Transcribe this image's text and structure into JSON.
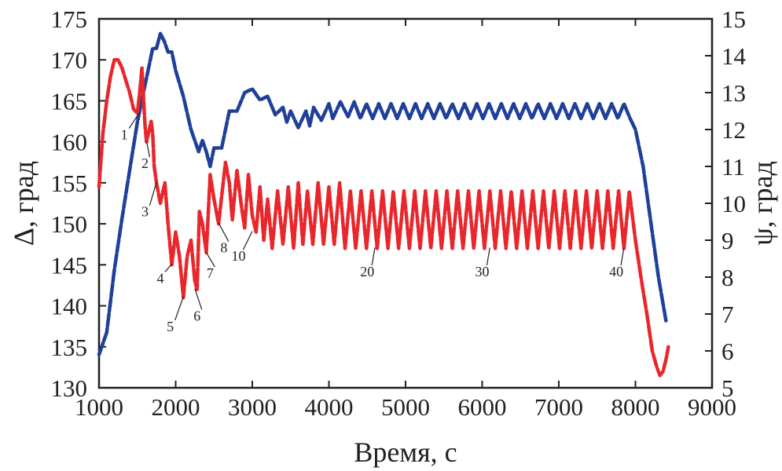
{
  "chart_data": {
    "type": "line",
    "xlabel": "Время, с",
    "ylabel_left": "Δ, град",
    "ylabel_right": "ψ, град",
    "xlim": [
      1000,
      9000
    ],
    "ylim_left": [
      130,
      175
    ],
    "ylim_right": [
      5,
      15
    ],
    "x_ticks": [
      "1000",
      "2000",
      "3000",
      "4000",
      "5000",
      "6000",
      "7000",
      "8000",
      "9000"
    ],
    "y_left_ticks": [
      "130",
      "135",
      "140",
      "145",
      "150",
      "155",
      "160",
      "165",
      "170",
      "175"
    ],
    "y_right_ticks": [
      "5",
      "6",
      "7",
      "8",
      "9",
      "10",
      "11",
      "12",
      "13",
      "14",
      "15"
    ],
    "grid": false,
    "series": [
      {
        "name": "ψ (blue)",
        "axis": "right",
        "color": "#1f3f9a",
        "points": [
          [
            1000,
            5.9
          ],
          [
            1100,
            6.5
          ],
          [
            1200,
            8.2
          ],
          [
            1300,
            9.6
          ],
          [
            1400,
            10.9
          ],
          [
            1500,
            12.2
          ],
          [
            1600,
            13.2
          ],
          [
            1700,
            14.2
          ],
          [
            1750,
            14.2
          ],
          [
            1800,
            14.6
          ],
          [
            1850,
            14.4
          ],
          [
            1900,
            14.1
          ],
          [
            1950,
            14.1
          ],
          [
            2000,
            13.6
          ],
          [
            2100,
            12.9
          ],
          [
            2200,
            12.0
          ],
          [
            2300,
            11.4
          ],
          [
            2350,
            11.7
          ],
          [
            2400,
            11.4
          ],
          [
            2450,
            11.0
          ],
          [
            2500,
            11.5
          ],
          [
            2600,
            11.5
          ],
          [
            2700,
            12.5
          ],
          [
            2800,
            12.5
          ],
          [
            2900,
            13.0
          ],
          [
            3000,
            13.1
          ],
          [
            3100,
            12.8
          ],
          [
            3200,
            12.9
          ],
          [
            3300,
            12.4
          ],
          [
            3400,
            12.6
          ],
          [
            3450,
            12.2
          ],
          [
            3500,
            12.5
          ],
          [
            3600,
            12.05
          ],
          [
            3700,
            12.5
          ],
          [
            3750,
            12.1
          ],
          [
            3800,
            12.6
          ],
          [
            3900,
            12.25
          ],
          [
            4000,
            12.7
          ],
          [
            4050,
            12.3
          ],
          [
            4150,
            12.75
          ],
          [
            4250,
            12.35
          ],
          [
            4330,
            12.75
          ],
          [
            4410,
            12.3
          ],
          [
            4490,
            12.7
          ],
          [
            4570,
            12.3
          ],
          [
            4650,
            12.7
          ],
          [
            4730,
            12.3
          ],
          [
            4810,
            12.7
          ],
          [
            4890,
            12.3
          ],
          [
            4970,
            12.7
          ],
          [
            5050,
            12.3
          ],
          [
            5130,
            12.7
          ],
          [
            5210,
            12.3
          ],
          [
            5290,
            12.7
          ],
          [
            5370,
            12.3
          ],
          [
            5450,
            12.7
          ],
          [
            5530,
            12.3
          ],
          [
            5610,
            12.7
          ],
          [
            5690,
            12.3
          ],
          [
            5770,
            12.7
          ],
          [
            5850,
            12.3
          ],
          [
            5930,
            12.7
          ],
          [
            6010,
            12.3
          ],
          [
            6090,
            12.7
          ],
          [
            6170,
            12.3
          ],
          [
            6250,
            12.7
          ],
          [
            6330,
            12.3
          ],
          [
            6410,
            12.7
          ],
          [
            6490,
            12.3
          ],
          [
            6570,
            12.7
          ],
          [
            6650,
            12.3
          ],
          [
            6730,
            12.7
          ],
          [
            6810,
            12.3
          ],
          [
            6890,
            12.7
          ],
          [
            6970,
            12.3
          ],
          [
            7050,
            12.7
          ],
          [
            7130,
            12.3
          ],
          [
            7210,
            12.7
          ],
          [
            7290,
            12.3
          ],
          [
            7370,
            12.7
          ],
          [
            7450,
            12.3
          ],
          [
            7530,
            12.7
          ],
          [
            7610,
            12.3
          ],
          [
            7690,
            12.7
          ],
          [
            7770,
            12.3
          ],
          [
            7850,
            12.7
          ],
          [
            7930,
            12.3
          ],
          [
            8000,
            12.0
          ],
          [
            8100,
            11.0
          ],
          [
            8200,
            9.5
          ],
          [
            8300,
            8.0
          ],
          [
            8400,
            6.8
          ]
        ]
      },
      {
        "name": "Δ (red)",
        "axis": "left",
        "color": "#e8262b",
        "points": [
          [
            1000,
            154.5
          ],
          [
            1050,
            161
          ],
          [
            1100,
            165
          ],
          [
            1150,
            168
          ],
          [
            1200,
            170
          ],
          [
            1250,
            170
          ],
          [
            1300,
            169
          ],
          [
            1350,
            167.5
          ],
          [
            1400,
            166
          ],
          [
            1450,
            164
          ],
          [
            1500,
            163.5
          ],
          [
            1530,
            166
          ],
          [
            1560,
            169
          ],
          [
            1600,
            162
          ],
          [
            1620,
            160
          ],
          [
            1680,
            162.5
          ],
          [
            1700,
            161
          ],
          [
            1720,
            157
          ],
          [
            1750,
            155
          ],
          [
            1800,
            152.5
          ],
          [
            1860,
            155
          ],
          [
            1900,
            150
          ],
          [
            1950,
            145
          ],
          [
            2000,
            149
          ],
          [
            2050,
            146
          ],
          [
            2100,
            141
          ],
          [
            2150,
            146
          ],
          [
            2200,
            148
          ],
          [
            2250,
            143
          ],
          [
            2280,
            142
          ],
          [
            2310,
            151.5
          ],
          [
            2350,
            150
          ],
          [
            2400,
            146.5
          ],
          [
            2450,
            156
          ],
          [
            2500,
            153
          ],
          [
            2560,
            150
          ],
          [
            2650,
            157.5
          ],
          [
            2700,
            155
          ],
          [
            2740,
            150.5
          ],
          [
            2800,
            156.5
          ],
          [
            2860,
            152
          ],
          [
            2900,
            149.5
          ],
          [
            2950,
            156
          ],
          [
            3000,
            151
          ],
          [
            3050,
            149
          ],
          [
            3100,
            154.5
          ],
          [
            3150,
            148
          ],
          [
            3200,
            153
          ],
          [
            3260,
            147
          ],
          [
            3330,
            154
          ],
          [
            3400,
            147.5
          ],
          [
            3470,
            154.5
          ],
          [
            3540,
            147
          ],
          [
            3600,
            155
          ],
          [
            3660,
            147.5
          ],
          [
            3720,
            154
          ],
          [
            3790,
            147.5
          ],
          [
            3860,
            155
          ],
          [
            3930,
            147.5
          ],
          [
            4000,
            154.5
          ],
          [
            4070,
            147.5
          ],
          [
            4140,
            155
          ],
          [
            4210,
            147
          ],
          [
            4280,
            154
          ],
          [
            4350,
            147
          ],
          [
            4420,
            154
          ],
          [
            4490,
            147
          ],
          [
            4560,
            154
          ],
          [
            4630,
            147
          ],
          [
            4700,
            154
          ],
          [
            4770,
            147
          ],
          [
            4840,
            154
          ],
          [
            4910,
            147
          ],
          [
            4980,
            154
          ],
          [
            5050,
            147
          ],
          [
            5120,
            154
          ],
          [
            5190,
            147
          ],
          [
            5260,
            154
          ],
          [
            5330,
            147
          ],
          [
            5400,
            154
          ],
          [
            5470,
            147
          ],
          [
            5540,
            154
          ],
          [
            5610,
            147
          ],
          [
            5680,
            154
          ],
          [
            5750,
            147
          ],
          [
            5820,
            154
          ],
          [
            5890,
            147
          ],
          [
            5960,
            154
          ],
          [
            6030,
            147
          ],
          [
            6100,
            154
          ],
          [
            6170,
            147
          ],
          [
            6240,
            154
          ],
          [
            6310,
            147
          ],
          [
            6380,
            154
          ],
          [
            6450,
            147
          ],
          [
            6520,
            154
          ],
          [
            6590,
            147
          ],
          [
            6660,
            154
          ],
          [
            6730,
            147
          ],
          [
            6800,
            154
          ],
          [
            6870,
            147
          ],
          [
            6940,
            154
          ],
          [
            7010,
            147
          ],
          [
            7080,
            154
          ],
          [
            7150,
            147
          ],
          [
            7220,
            154
          ],
          [
            7290,
            147
          ],
          [
            7360,
            154
          ],
          [
            7430,
            147
          ],
          [
            7500,
            154
          ],
          [
            7570,
            147
          ],
          [
            7640,
            154
          ],
          [
            7710,
            147
          ],
          [
            7780,
            154
          ],
          [
            7850,
            147
          ],
          [
            7920,
            154
          ],
          [
            8000,
            148
          ],
          [
            8080,
            143
          ],
          [
            8150,
            139
          ],
          [
            8220,
            134.5
          ],
          [
            8280,
            132.5
          ],
          [
            8320,
            131.5
          ],
          [
            8360,
            132
          ],
          [
            8400,
            133.5
          ],
          [
            8430,
            135
          ]
        ]
      }
    ],
    "annotations": [
      {
        "text": "1",
        "x": 1530,
        "y": 163.6,
        "label_x": 1330,
        "label_y": 160.3
      },
      {
        "text": "2",
        "x": 1620,
        "y": 160.1,
        "label_x": 1600,
        "label_y": 156.8
      },
      {
        "text": "3",
        "x": 1750,
        "y": 155.1,
        "label_x": 1600,
        "label_y": 150.9
      },
      {
        "text": "4",
        "x": 1950,
        "y": 145.1,
        "label_x": 1800,
        "label_y": 142.8
      },
      {
        "text": "5",
        "x": 2100,
        "y": 141.1,
        "label_x": 1930,
        "label_y": 136.9
      },
      {
        "text": "6",
        "x": 2250,
        "y": 142.1,
        "label_x": 2280,
        "label_y": 138.2
      },
      {
        "text": "7",
        "x": 2400,
        "y": 146.5,
        "label_x": 2450,
        "label_y": 143.4
      },
      {
        "text": "8",
        "x": 2560,
        "y": 150.1,
        "label_x": 2630,
        "label_y": 146.5
      },
      {
        "text": "10",
        "x": 3000,
        "y": 149.1,
        "label_x": 2820,
        "label_y": 145.5
      },
      {
        "text": "20",
        "x": 4600,
        "y": 147.1,
        "label_x": 4500,
        "label_y": 143.6
      },
      {
        "text": "30",
        "x": 6100,
        "y": 147.1,
        "label_x": 6000,
        "label_y": 143.6
      },
      {
        "text": "40",
        "x": 7850,
        "y": 147.1,
        "label_x": 7750,
        "label_y": 143.6
      }
    ]
  }
}
